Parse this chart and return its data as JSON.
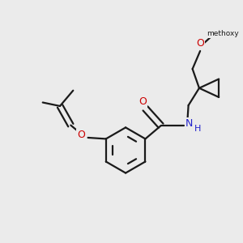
{
  "bg_color": "#ebebeb",
  "bond_color": "#1a1a1a",
  "oxygen_color": "#cc0000",
  "nitrogen_color": "#2222cc",
  "bond_lw": 1.6,
  "figsize": [
    3.0,
    3.0
  ],
  "dpi": 100,
  "atoms": {
    "O_top": "O",
    "O_ring": "O",
    "N": "N",
    "H": "H",
    "methoxy": "methoxy"
  }
}
